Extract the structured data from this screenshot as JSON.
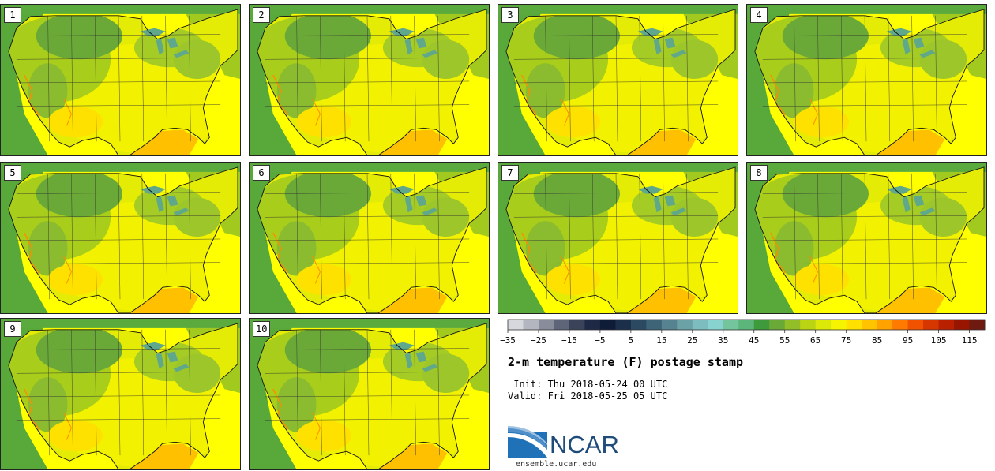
{
  "panels": [
    "1",
    "2",
    "3",
    "4",
    "5",
    "6",
    "7",
    "8",
    "9",
    "10"
  ],
  "colorbar": {
    "colors": [
      "#d7d8dd",
      "#b3b5bf",
      "#898c9b",
      "#5e6579",
      "#3a4359",
      "#1e2945",
      "#0f1c37",
      "#1b2e4a",
      "#2b4a62",
      "#3e6478",
      "#56838f",
      "#6aa2a8",
      "#7dbdbf",
      "#88d3cf",
      "#74c59d",
      "#5cb57a",
      "#3f9a3b",
      "#6aa937",
      "#92be28",
      "#bad414",
      "#dbe808",
      "#f6f400",
      "#ffe000",
      "#ffc300",
      "#ffa200",
      "#ff7a00",
      "#f05200",
      "#d63600",
      "#b92000",
      "#981600",
      "#6f1a10"
    ],
    "tick_labels": [
      "−35",
      "−25",
      "−15",
      "−5",
      "5",
      "15",
      "25",
      "35",
      "45",
      "55",
      "65",
      "75",
      "85",
      "95",
      "105",
      "115"
    ]
  },
  "title": "2-m temperature (F) postage stamp",
  "init": " Init: Thu 2018-05-24 00 UTC",
  "valid": "Valid: Fri 2018-05-25 05 UTC",
  "logo": {
    "text": "NCAR",
    "url": "ensemble.ucar.edu"
  }
}
